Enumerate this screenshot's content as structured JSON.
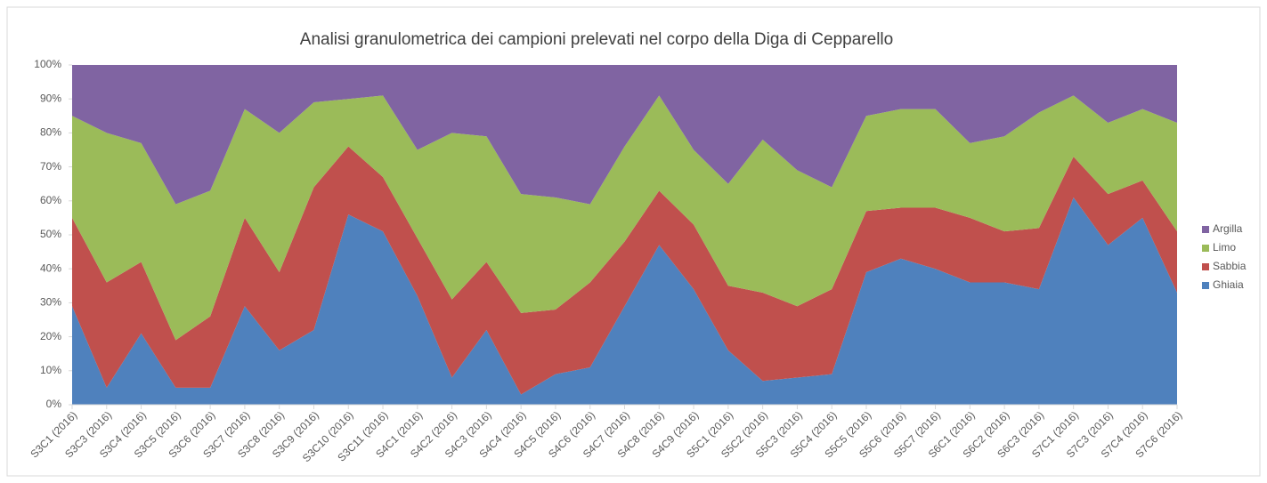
{
  "chart_data": {
    "type": "stacked_area",
    "title": "Analisi granulometrica dei campioni prelevati nel corpo della Diga di Cepparello",
    "categories": [
      "S3C1 (2016)",
      "S3C3 (2016)",
      "S3C4 (2016)",
      "S3C5 (2016)",
      "S3C6 (2016)",
      "S3C7 (2016)",
      "S3C8 (2016)",
      "S3C9 (2016)",
      "S3C10 (2016)",
      "S3C11 (2016)",
      "S4C1 (2016)",
      "S4C2 (2016)",
      "S4C3 (2016)",
      "S4C4 (2016)",
      "S4C5 (2016)",
      "S4C6 (2016)",
      "S4C7 (2016)",
      "S4C8 (2016)",
      "S4C9 (2016)",
      "S5C1 (2016)",
      "S5C2 (2016)",
      "S5C3 (2016)",
      "S5C4 (2016)",
      "S5C5 (2016)",
      "S5C6 (2016)",
      "S5C7 (2016)",
      "S6C1 (2016)",
      "S6C2 (2016)",
      "S6C3 (2016)",
      "S7C1 (2016)",
      "S7C3 (2016)",
      "S7C4 (2016)",
      "S7C6 (2016)"
    ],
    "series": [
      {
        "name": "Ghiaia",
        "color": "#4f81bd",
        "values": [
          29,
          5,
          21,
          5,
          5,
          29,
          16,
          22,
          56,
          51,
          32,
          8,
          22,
          3,
          9,
          11,
          29,
          47,
          34,
          16,
          7,
          8,
          9,
          39,
          43,
          40,
          36,
          36,
          34,
          61,
          47,
          55,
          33
        ]
      },
      {
        "name": "Sabbia",
        "color": "#c0504d",
        "values": [
          26,
          31,
          21,
          14,
          21,
          26,
          23,
          42,
          20,
          16,
          17,
          23,
          20,
          24,
          19,
          25,
          19,
          16,
          19,
          19,
          26,
          21,
          25,
          18,
          15,
          18,
          19,
          15,
          18,
          12,
          15,
          11,
          18
        ]
      },
      {
        "name": "Limo",
        "color": "#9bbb59",
        "values": [
          30,
          44,
          35,
          40,
          37,
          32,
          41,
          25,
          14,
          24,
          26,
          49,
          37,
          35,
          33,
          23,
          28,
          28,
          22,
          30,
          45,
          40,
          30,
          28,
          29,
          29,
          22,
          28,
          34,
          18,
          21,
          21,
          32
        ]
      },
      {
        "name": "Argilla",
        "color": "#8064a2",
        "values": [
          15,
          20,
          23,
          41,
          37,
          13,
          20,
          11,
          10,
          9,
          25,
          20,
          21,
          38,
          39,
          41,
          24,
          9,
          25,
          35,
          22,
          31,
          36,
          15,
          13,
          13,
          23,
          21,
          14,
          9,
          17,
          13,
          17
        ]
      }
    ],
    "ylim": [
      0,
      100
    ],
    "yticks": [
      {
        "value": 0,
        "label": "0%"
      },
      {
        "value": 10,
        "label": "10%"
      },
      {
        "value": 20,
        "label": "20%"
      },
      {
        "value": 30,
        "label": "30%"
      },
      {
        "value": 40,
        "label": "40%"
      },
      {
        "value": 50,
        "label": "50%"
      },
      {
        "value": 60,
        "label": "60%"
      },
      {
        "value": 70,
        "label": "70%"
      },
      {
        "value": 80,
        "label": "80%"
      },
      {
        "value": 90,
        "label": "90%"
      },
      {
        "value": 100,
        "label": "100%"
      }
    ],
    "legend": "right"
  }
}
